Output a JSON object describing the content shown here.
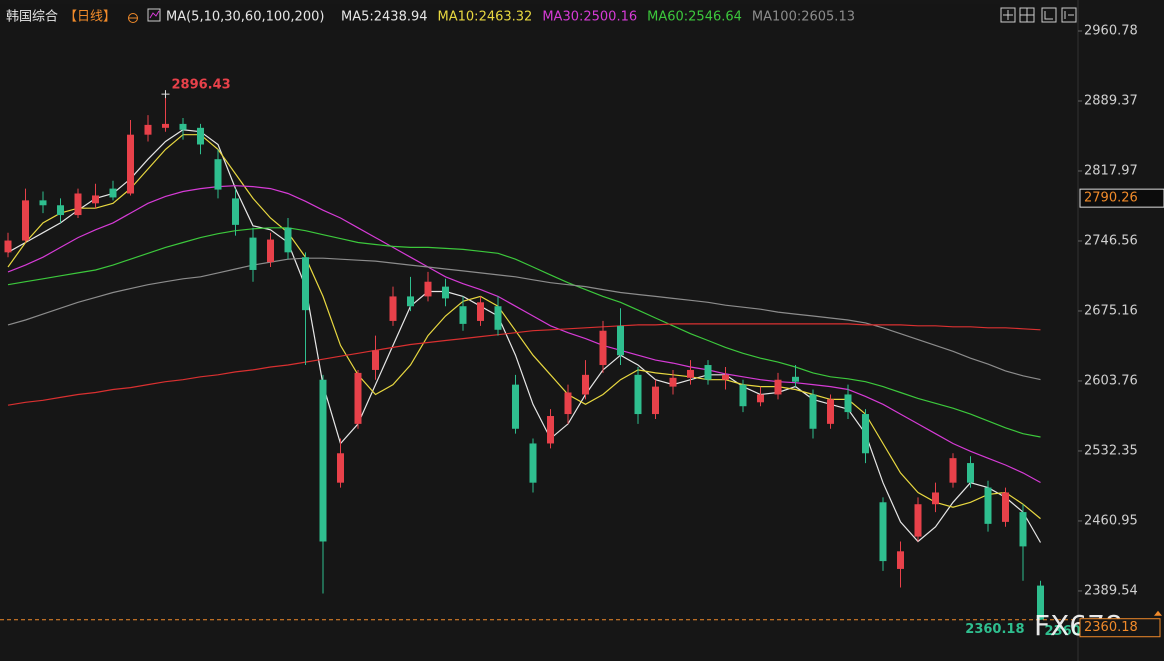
{
  "chart_data": {
    "type": "candlestick",
    "title": "韩国综合",
    "period": "【日线】",
    "indicator": "MA(5,10,30,60,100,200)",
    "up_color": "#e8414a",
    "down_color": "#2fbf8f",
    "ylim": [
      2324.2,
      2992.4
    ],
    "yticks": [
      2960.78,
      2889.37,
      2817.97,
      2746.56,
      2675.16,
      2603.76,
      2532.35,
      2460.95,
      2389.54
    ],
    "marker_price": 2790.26,
    "open": [
      2735,
      2747,
      2788,
      2783,
      2773,
      2785,
      2800,
      2795,
      2855,
      2862,
      2866,
      2862,
      2830,
      2790,
      2750,
      2725,
      2760,
      2730,
      2605,
      2500,
      2560,
      2615,
      2665,
      2690,
      2690,
      2700,
      2680,
      2665,
      2680,
      2600,
      2540,
      2540,
      2570,
      2590,
      2620,
      2660,
      2610,
      2570,
      2598,
      2607,
      2620,
      2605,
      2600,
      2582,
      2590,
      2608,
      2590,
      2560,
      2590,
      2570,
      2480,
      2412,
      2445,
      2478,
      2500,
      2520,
      2495,
      2460,
      2470,
      2395
    ],
    "high": [
      2755,
      2800,
      2797,
      2790,
      2800,
      2805,
      2808,
      2870,
      2875,
      2896.43,
      2872,
      2866,
      2840,
      2800,
      2760,
      2755,
      2770,
      2735,
      2610,
      2545,
      2615,
      2650,
      2700,
      2710,
      2715,
      2708,
      2690,
      2690,
      2690,
      2610,
      2545,
      2575,
      2600,
      2625,
      2665,
      2678,
      2618,
      2605,
      2615,
      2625,
      2625,
      2618,
      2605,
      2598,
      2612,
      2620,
      2595,
      2590,
      2600,
      2575,
      2485,
      2440,
      2485,
      2500,
      2530,
      2527,
      2502,
      2495,
      2478,
      2400
    ],
    "low": [
      2730,
      2745,
      2775,
      2765,
      2770,
      2780,
      2788,
      2793,
      2848,
      2858,
      2850,
      2835,
      2790,
      2752,
      2705,
      2720,
      2728,
      2620,
      2386.96,
      2495,
      2555,
      2605,
      2660,
      2675,
      2685,
      2680,
      2655,
      2660,
      2650,
      2550,
      2490,
      2535,
      2560,
      2585,
      2612,
      2620,
      2560,
      2565,
      2590,
      2600,
      2600,
      2595,
      2572,
      2578,
      2585,
      2598,
      2545,
      2555,
      2565,
      2520,
      2410,
      2393,
      2440,
      2470,
      2495,
      2495,
      2450,
      2455,
      2400,
      2360.18
    ],
    "close": [
      2747,
      2788,
      2783,
      2773,
      2795,
      2793,
      2791,
      2855,
      2865,
      2866,
      2860,
      2845,
      2799,
      2763,
      2717,
      2748,
      2735,
      2676,
      2440,
      2530,
      2612,
      2635,
      2690,
      2680,
      2705,
      2688,
      2662,
      2684,
      2656,
      2555,
      2500,
      2568,
      2592,
      2610,
      2655,
      2630,
      2570,
      2598,
      2607,
      2615,
      2605,
      2610,
      2578,
      2590,
      2605,
      2603,
      2555,
      2585,
      2572,
      2530,
      2420,
      2430,
      2478,
      2490,
      2525,
      2500,
      2458,
      2490,
      2435,
      2360.18
    ],
    "series": [
      {
        "name": "MA5",
        "legend_label": "MA5:2438.94",
        "color": "#e6e6e6",
        "values": [
          2735,
          2745,
          2755,
          2765,
          2778,
          2790,
          2795,
          2810,
          2830,
          2848,
          2860,
          2858,
          2845,
          2800,
          2762,
          2758,
          2745,
          2700,
          2600,
          2540,
          2560,
          2600,
          2640,
          2680,
          2695,
          2695,
          2690,
          2680,
          2670,
          2630,
          2580,
          2545,
          2560,
          2590,
          2615,
          2630,
          2620,
          2605,
          2600,
          2605,
          2610,
          2610,
          2598,
          2590,
          2592,
          2598,
          2585,
          2580,
          2575,
          2550,
          2500,
          2460,
          2440,
          2455,
          2480,
          2500,
          2495,
          2485,
          2470,
          2438.94
        ]
      },
      {
        "name": "MA10",
        "legend_label": "MA10:2463.32",
        "color": "#e8d840",
        "values": [
          2720,
          2745,
          2765,
          2775,
          2780,
          2780,
          2785,
          2800,
          2820,
          2840,
          2855,
          2855,
          2840,
          2815,
          2790,
          2770,
          2755,
          2730,
          2690,
          2640,
          2610,
          2590,
          2600,
          2620,
          2650,
          2670,
          2685,
          2690,
          2680,
          2655,
          2630,
          2610,
          2590,
          2580,
          2590,
          2605,
          2615,
          2612,
          2610,
          2608,
          2605,
          2605,
          2600,
          2598,
          2598,
          2595,
          2590,
          2585,
          2585,
          2570,
          2540,
          2510,
          2490,
          2480,
          2475,
          2480,
          2488,
          2490,
          2478,
          2463.32
        ]
      },
      {
        "name": "MA30",
        "legend_label": "MA30:2500.16",
        "color": "#d63bd6",
        "values": [
          2715,
          2722,
          2730,
          2740,
          2750,
          2758,
          2765,
          2775,
          2785,
          2792,
          2797,
          2800,
          2802,
          2803,
          2802,
          2800,
          2795,
          2787,
          2778,
          2770,
          2760,
          2750,
          2740,
          2730,
          2720,
          2710,
          2703,
          2697,
          2690,
          2680,
          2670,
          2660,
          2653,
          2647,
          2640,
          2635,
          2630,
          2625,
          2622,
          2618,
          2615,
          2611,
          2608,
          2605,
          2603,
          2602,
          2600,
          2598,
          2595,
          2588,
          2580,
          2570,
          2560,
          2550,
          2540,
          2532,
          2525,
          2518,
          2510,
          2500.16
        ]
      },
      {
        "name": "MA60",
        "legend_label": "MA60:2546.64",
        "color": "#3cc83c",
        "values": [
          2702,
          2705,
          2708,
          2711,
          2714,
          2717,
          2722,
          2728,
          2734,
          2740,
          2745,
          2750,
          2754,
          2757,
          2759,
          2760,
          2760,
          2757,
          2753,
          2749,
          2745,
          2743,
          2741,
          2740,
          2740,
          2739,
          2738,
          2736,
          2734,
          2728,
          2720,
          2712,
          2704,
          2697,
          2690,
          2684,
          2676,
          2668,
          2660,
          2652,
          2645,
          2638,
          2632,
          2627,
          2623,
          2618,
          2612,
          2608,
          2606,
          2603,
          2598,
          2592,
          2586,
          2581,
          2576,
          2570,
          2563,
          2556,
          2550,
          2546.64
        ]
      },
      {
        "name": "MA100",
        "legend_label": "MA100:2605.13",
        "color": "#8c8c8c",
        "values": [
          2661,
          2666,
          2672,
          2678,
          2684,
          2689,
          2694,
          2698,
          2702,
          2705,
          2708,
          2710,
          2714,
          2718,
          2722,
          2725,
          2728,
          2729,
          2729,
          2728,
          2727,
          2726,
          2724,
          2722,
          2720,
          2718,
          2716,
          2714,
          2712,
          2710,
          2707,
          2704,
          2702,
          2700,
          2697,
          2694,
          2692,
          2690,
          2688,
          2686,
          2684,
          2681,
          2679,
          2677,
          2674,
          2672,
          2670,
          2668,
          2666,
          2663,
          2658,
          2652,
          2646,
          2640,
          2634,
          2627,
          2621,
          2614,
          2609,
          2605.13
        ]
      },
      {
        "color": "#d93030",
        "values": [
          2579,
          2582,
          2584,
          2587,
          2590,
          2592,
          2595,
          2597,
          2600,
          2603,
          2605,
          2608,
          2610,
          2613,
          2615,
          2618,
          2620,
          2623,
          2626,
          2629,
          2632,
          2635,
          2638,
          2641,
          2643,
          2645,
          2647,
          2649,
          2651,
          2653,
          2655,
          2656,
          2657,
          2658,
          2659,
          2660,
          2661,
          2661,
          2662,
          2662,
          2662,
          2662,
          2662,
          2662,
          2662,
          2662,
          2662,
          2662,
          2662,
          2661,
          2661,
          2661,
          2660,
          2660,
          2659,
          2659,
          2658,
          2658,
          2657,
          2656
        ]
      }
    ]
  }
}
